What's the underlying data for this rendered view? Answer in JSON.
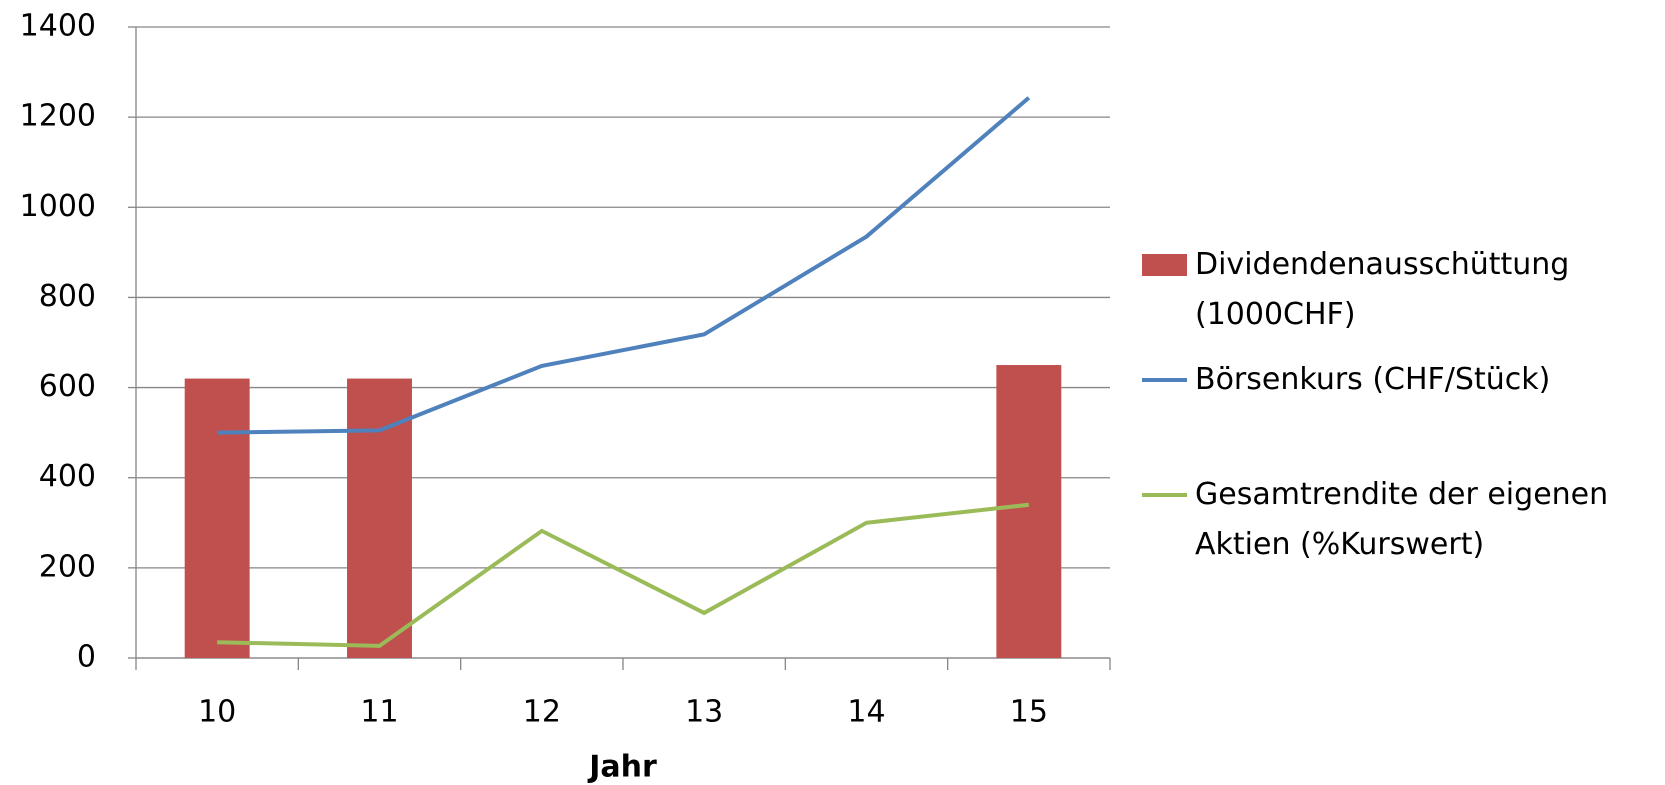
{
  "chart_data": {
    "type": "combo",
    "x_label": "Jahr",
    "categories": [
      "10",
      "11",
      "12",
      "13",
      "14",
      "15"
    ],
    "series": [
      {
        "name": "Dividendenausschüttung (1000CHF)",
        "type": "bar",
        "color": "#c0504d",
        "values": [
          620,
          620,
          null,
          null,
          null,
          650
        ]
      },
      {
        "name": "Börsenkurs (CHF/Stück)",
        "type": "line",
        "color": "#4f81bd",
        "values": [
          500,
          505,
          648,
          718,
          935,
          1243
        ]
      },
      {
        "name": "Gesamtrendite der eigenen Aktien (%Kurswert)",
        "type": "line",
        "color": "#9bbb59",
        "values": [
          35,
          27,
          282,
          100,
          300,
          340
        ]
      }
    ],
    "ylim": [
      0,
      1400
    ],
    "yticks": [
      0,
      200,
      400,
      600,
      800,
      1000,
      1200,
      1400
    ],
    "grid": true,
    "legend": "right"
  }
}
